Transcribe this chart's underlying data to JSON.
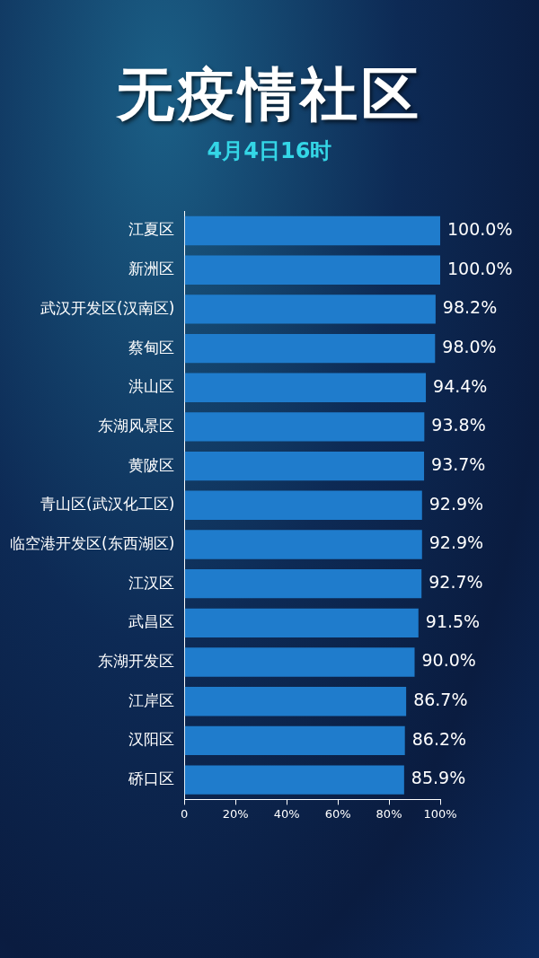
{
  "chart_data": {
    "type": "bar",
    "orientation": "horizontal",
    "title": "无疫情社区",
    "subtitle": "4月4日16时",
    "categories": [
      "江夏区",
      "新洲区",
      "武汉开发区(汉南区)",
      "蔡甸区",
      "洪山区",
      "东湖风景区",
      "黄陂区",
      "青山区(武汉化工区)",
      "临空港开发区(东西湖区)",
      "江汉区",
      "武昌区",
      "东湖开发区",
      "江岸区",
      "汉阳区",
      "硚口区"
    ],
    "values": [
      100.0,
      100.0,
      98.2,
      98.0,
      94.4,
      93.8,
      93.7,
      92.9,
      92.9,
      92.7,
      91.5,
      90.0,
      86.7,
      86.2,
      85.9
    ],
    "value_labels": [
      "100.0%",
      "100.0%",
      "98.2%",
      "98.0%",
      "94.4%",
      "93.8%",
      "93.7%",
      "92.9%",
      "92.9%",
      "92.7%",
      "91.5%",
      "90.0%",
      "86.7%",
      "86.2%",
      "85.9%"
    ],
    "color": "#1f7ccc",
    "xlim": [
      0,
      100
    ],
    "xticks": [
      0,
      {
        "value": 20,
        "label": "20%"
      },
      {
        "value": 40,
        "label": "40%"
      },
      {
        "value": 60,
        "label": "60%"
      },
      {
        "value": 80,
        "label": "80%"
      },
      {
        "value": 100,
        "label": "100%"
      }
    ],
    "grid": false,
    "legend": false
  }
}
